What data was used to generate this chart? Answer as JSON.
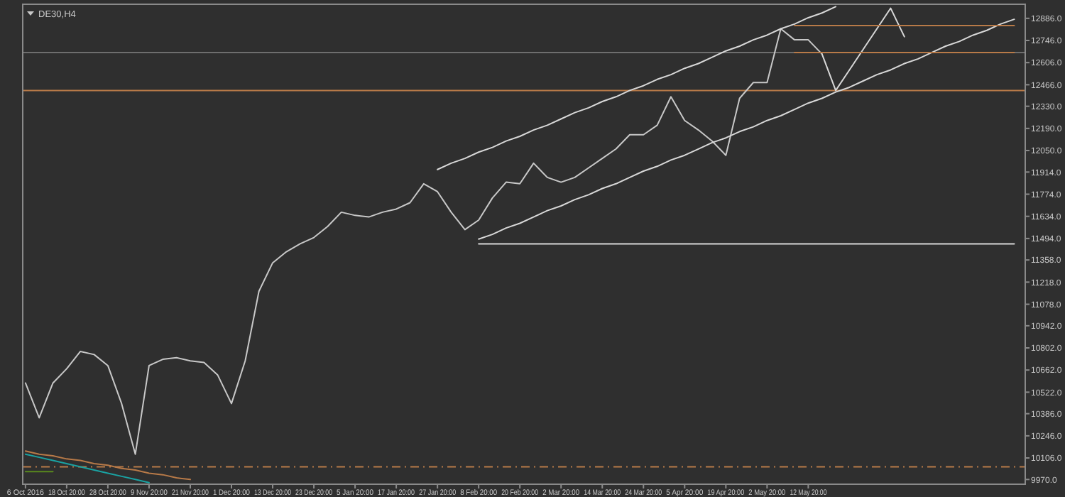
{
  "chart_data": {
    "type": "line",
    "title": "DE30,H4",
    "categories": [
      "6 Oct 2016",
      null,
      null,
      "18 Oct 20:00",
      null,
      null,
      "28 Oct 20:00",
      null,
      null,
      "9 Nov 20:00",
      null,
      null,
      "21 Nov 20:00",
      null,
      null,
      "1 Dec 20:00",
      null,
      null,
      "13 Dec 20:00",
      null,
      null,
      "23 Dec 20:00",
      null,
      null,
      "5 Jan 20:00",
      null,
      null,
      "17 Jan 20:00",
      null,
      null,
      "27 Jan 20:00",
      null,
      null,
      "8 Feb 20:00",
      null,
      null,
      "20 Feb 20:00",
      null,
      null,
      "2 Mar 20:00",
      null,
      null,
      "14 Mar 20:00",
      null,
      null,
      "24 Mar 20:00",
      null,
      null,
      "5 Apr 20:00",
      null,
      null,
      "19 Apr 20:00",
      null,
      null,
      "2 May 20:00",
      null,
      null,
      "12 May 20:00",
      null,
      null,
      null,
      null,
      null,
      null,
      null,
      null,
      null,
      null,
      null,
      null,
      null,
      null,
      null
    ],
    "ylim": [
      9940,
      12975
    ],
    "yticks": [
      {
        "value": 12886,
        "label": "12886.0"
      },
      {
        "value": 12746,
        "label": "12746.0"
      },
      {
        "value": 12606,
        "label": "12606.0"
      },
      {
        "value": 12466,
        "label": "12466.0"
      },
      {
        "value": 12330,
        "label": "12330.0"
      },
      {
        "value": 12190,
        "label": "12190.0"
      },
      {
        "value": 12050,
        "label": "12050.0"
      },
      {
        "value": 11914,
        "label": "11914.0"
      },
      {
        "value": 11774,
        "label": "11774.0"
      },
      {
        "value": 11634,
        "label": "11634.0"
      },
      {
        "value": 11494,
        "label": "11494.0"
      },
      {
        "value": 11358,
        "label": "11358.0"
      },
      {
        "value": 11218,
        "label": "11218.0"
      },
      {
        "value": 11078,
        "label": "11078.0"
      },
      {
        "value": 10942,
        "label": "10942.0"
      },
      {
        "value": 10802,
        "label": "10802.0"
      },
      {
        "value": 10662,
        "label": "10662.0"
      },
      {
        "value": 10522,
        "label": "10522.0"
      },
      {
        "value": 10386,
        "label": "10386.0"
      },
      {
        "value": 10246,
        "label": "10246.0"
      },
      {
        "value": 10106,
        "label": "10106.0"
      },
      {
        "value": 9970,
        "label": "9970.0"
      }
    ],
    "series": [
      {
        "color": "#c8c8c8",
        "values": [
          10580,
          10360,
          10580,
          10670,
          10780,
          10760,
          10690,
          10450,
          10130,
          10690,
          10730,
          10740,
          10720,
          10710,
          10630,
          10450,
          10720,
          11160,
          11340,
          11410,
          11460,
          11500,
          11570,
          11660,
          11640,
          11630,
          11660,
          11680,
          11720,
          11840,
          11790,
          11660,
          11550,
          11610,
          11750,
          11850,
          11840,
          11970,
          11880,
          11850,
          11880,
          11940,
          12000,
          12060,
          12150,
          12150,
          12210,
          12390,
          12240,
          12180,
          12110,
          12020,
          12380,
          12480,
          12480,
          12820,
          12750,
          12750,
          12660,
          null,
          null,
          null,
          null,
          null,
          null,
          null,
          null,
          null,
          null,
          null,
          null,
          null,
          null
        ]
      },
      {
        "color": "#d8d8d8",
        "values": [
          null,
          null,
          null,
          null,
          null,
          null,
          null,
          null,
          null,
          null,
          null,
          null,
          null,
          null,
          null,
          null,
          null,
          null,
          null,
          null,
          null,
          null,
          null,
          null,
          null,
          null,
          null,
          null,
          null,
          null,
          11930,
          11970,
          12000,
          12040,
          12070,
          12110,
          12140,
          12180,
          12210,
          12250,
          12290,
          12320,
          12360,
          12390,
          12430,
          12460,
          12500,
          12530,
          12570,
          12600,
          12640,
          12680,
          12710,
          12750,
          12780,
          12820,
          12850,
          12890,
          12920,
          12960,
          null,
          null,
          null,
          null,
          null,
          null,
          null,
          null,
          null,
          null,
          null,
          null,
          null
        ]
      },
      {
        "color": "#d8d8d8",
        "values": [
          null,
          null,
          null,
          null,
          null,
          null,
          null,
          null,
          null,
          null,
          null,
          null,
          null,
          null,
          null,
          null,
          null,
          null,
          null,
          null,
          null,
          null,
          null,
          null,
          null,
          null,
          null,
          null,
          null,
          null,
          null,
          null,
          null,
          11490,
          11520,
          11560,
          11590,
          11630,
          11670,
          11700,
          11740,
          11770,
          11810,
          11840,
          11880,
          11920,
          11950,
          11990,
          12020,
          12060,
          12100,
          12130,
          12170,
          12200,
          12240,
          12270,
          12310,
          12350,
          12380,
          12420,
          12450,
          12490,
          12530,
          12560,
          12600,
          12630,
          12670,
          12710,
          12740,
          12780,
          12810,
          12850,
          12880
        ]
      },
      {
        "color": "#d8d8d8",
        "values": [
          null,
          null,
          null,
          null,
          null,
          null,
          null,
          null,
          null,
          null,
          null,
          null,
          null,
          null,
          null,
          null,
          null,
          null,
          null,
          null,
          null,
          null,
          null,
          null,
          null,
          null,
          null,
          null,
          null,
          null,
          null,
          null,
          null,
          11460,
          11460,
          11460,
          11460,
          11460,
          11460,
          11460,
          11460,
          11460,
          11460,
          11460,
          11460,
          11460,
          11460,
          11460,
          11460,
          11460,
          11460,
          11460,
          11460,
          11460,
          11460,
          11460,
          11460,
          11460,
          11460,
          11460,
          11460,
          11460,
          11460,
          11460,
          11460,
          11460,
          11460,
          11460,
          11460,
          11460,
          11460,
          11460,
          11460
        ]
      },
      {
        "color": "#d8d8d8",
        "values": [
          null,
          null,
          null,
          null,
          null,
          null,
          null,
          null,
          null,
          null,
          null,
          null,
          null,
          null,
          null,
          null,
          null,
          null,
          null,
          null,
          null,
          null,
          null,
          null,
          null,
          null,
          null,
          null,
          null,
          null,
          null,
          null,
          null,
          null,
          null,
          null,
          null,
          null,
          null,
          null,
          null,
          null,
          null,
          null,
          null,
          null,
          null,
          null,
          null,
          null,
          null,
          null,
          null,
          null,
          null,
          null,
          null,
          null,
          12660,
          12430,
          12560,
          12690,
          12820,
          12950,
          12770,
          null,
          null,
          null,
          null,
          null,
          null,
          null,
          null
        ]
      },
      {
        "color": "#b87a48",
        "values": [
          null,
          null,
          null,
          null,
          null,
          null,
          null,
          null,
          null,
          null,
          null,
          null,
          null,
          null,
          null,
          null,
          null,
          null,
          null,
          null,
          null,
          null,
          null,
          null,
          null,
          null,
          null,
          null,
          null,
          null,
          null,
          null,
          null,
          null,
          null,
          null,
          null,
          null,
          null,
          null,
          null,
          null,
          null,
          null,
          null,
          null,
          null,
          null,
          null,
          null,
          null,
          null,
          null,
          null,
          null,
          null,
          12840,
          12840,
          12840,
          12840,
          12840,
          12840,
          12840,
          12840,
          12840,
          12840,
          12840,
          12840,
          12840,
          12840,
          12840,
          12840,
          12840
        ]
      },
      {
        "color": "#b87a48",
        "values": [
          null,
          null,
          null,
          null,
          null,
          null,
          null,
          null,
          null,
          null,
          null,
          null,
          null,
          null,
          null,
          null,
          null,
          null,
          null,
          null,
          null,
          null,
          null,
          null,
          null,
          null,
          null,
          null,
          null,
          null,
          null,
          null,
          null,
          null,
          null,
          null,
          null,
          null,
          null,
          null,
          null,
          null,
          null,
          null,
          null,
          null,
          null,
          null,
          null,
          null,
          null,
          null,
          null,
          null,
          null,
          null,
          12670,
          12670,
          12670,
          12670,
          12670,
          12670,
          12670,
          12670,
          12670,
          12670,
          12670,
          12670,
          12670,
          12670,
          12670,
          12670,
          12670
        ]
      },
      {
        "color": "#b87a48",
        "values": [
          10150,
          10130,
          10120,
          10100,
          10090,
          10070,
          10060,
          10040,
          10030,
          10010,
          10000,
          9980,
          9970,
          null,
          null,
          null,
          null,
          null,
          null,
          null,
          null,
          null,
          null,
          null,
          null,
          null,
          null,
          null,
          null,
          null,
          null,
          null,
          null,
          null,
          null,
          null,
          null,
          null,
          null,
          null,
          null,
          null,
          null,
          null,
          null,
          null,
          null,
          null,
          null,
          null,
          null,
          null,
          null,
          null,
          null,
          null,
          null,
          null,
          null,
          null,
          null,
          null,
          null,
          null,
          null,
          null,
          null,
          null,
          null,
          null,
          null,
          null,
          null
        ]
      },
      {
        "color": "#1aa3a3",
        "values": [
          10130,
          10110,
          10090,
          10070,
          10050,
          10030,
          10010,
          9990,
          9970,
          9950,
          null,
          null,
          null,
          null,
          null,
          null,
          null,
          null,
          null,
          null,
          null,
          null,
          null,
          null,
          null,
          null,
          null,
          null,
          null,
          null,
          null,
          null,
          null,
          null,
          null,
          null,
          null,
          null,
          null,
          null,
          null,
          null,
          null,
          null,
          null,
          null,
          null,
          null,
          null,
          null,
          null,
          null,
          null,
          null,
          null,
          null,
          null,
          null,
          null,
          null,
          null,
          null,
          null,
          null,
          null,
          null,
          null,
          null,
          null,
          null,
          null,
          null,
          null
        ]
      },
      {
        "color": "#5a8a1e",
        "values": [
          10020,
          10020,
          10020,
          null,
          null,
          null,
          null,
          null,
          null,
          null,
          null,
          null,
          null,
          null,
          null,
          null,
          null,
          null,
          null,
          null,
          null,
          null,
          null,
          null,
          null,
          null,
          null,
          null,
          null,
          null,
          null,
          null,
          null,
          null,
          null,
          null,
          null,
          null,
          null,
          null,
          null,
          null,
          null,
          null,
          null,
          null,
          null,
          null,
          null,
          null,
          null,
          null,
          null,
          null,
          null,
          null,
          null,
          null,
          null,
          null,
          null,
          null,
          null,
          null,
          null,
          null,
          null,
          null,
          null,
          null,
          null,
          null,
          null
        ]
      }
    ],
    "ref_lines": [
      {
        "axis": "y",
        "value": 12430,
        "color": "#b87a48"
      },
      {
        "axis": "y",
        "value": 12670,
        "color": "#6e6e6e"
      },
      {
        "axis": "y",
        "value": 10050,
        "color": "#b87a48",
        "line_style": "dashed"
      }
    ],
    "grid": false
  }
}
